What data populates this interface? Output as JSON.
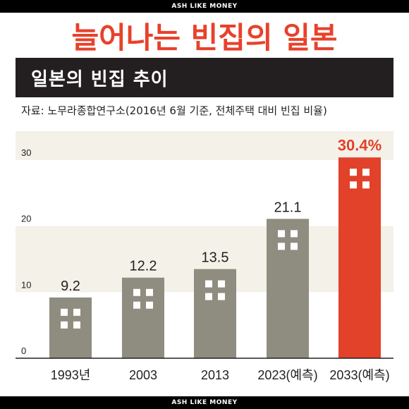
{
  "header": {
    "brand_top": "ASH LIKE MONEY",
    "headline": "늘어나는 빈집의 일본",
    "brand_bottom": "ASH LIKE MONEY"
  },
  "panel": {
    "title": "일본의 빈집 추이",
    "source": "자료: 노무라종합연구소(2016년 6월 기준, 전체주택 대비 빈집 비율)"
  },
  "colors": {
    "bar_gray": "#8f8d80",
    "bar_highlight": "#e2412a",
    "label_dark": "#231f20",
    "label_highlight": "#e2412a",
    "band": "#f3f1e8",
    "window": "#ffffff"
  },
  "chart_data": {
    "type": "bar",
    "categories": [
      "1993년",
      "2003",
      "2013",
      "2023(예측)",
      "2033(예측)"
    ],
    "values": [
      9.2,
      12.2,
      13.5,
      21.1,
      30.4
    ],
    "value_labels": [
      "9.2",
      "12.2",
      "13.5",
      "21.1",
      "30.4%"
    ],
    "highlight_index": 4,
    "yticks": [
      "0",
      "10",
      "20",
      "30"
    ],
    "ylim": [
      0,
      30
    ],
    "grid": false,
    "banded_background": true
  }
}
